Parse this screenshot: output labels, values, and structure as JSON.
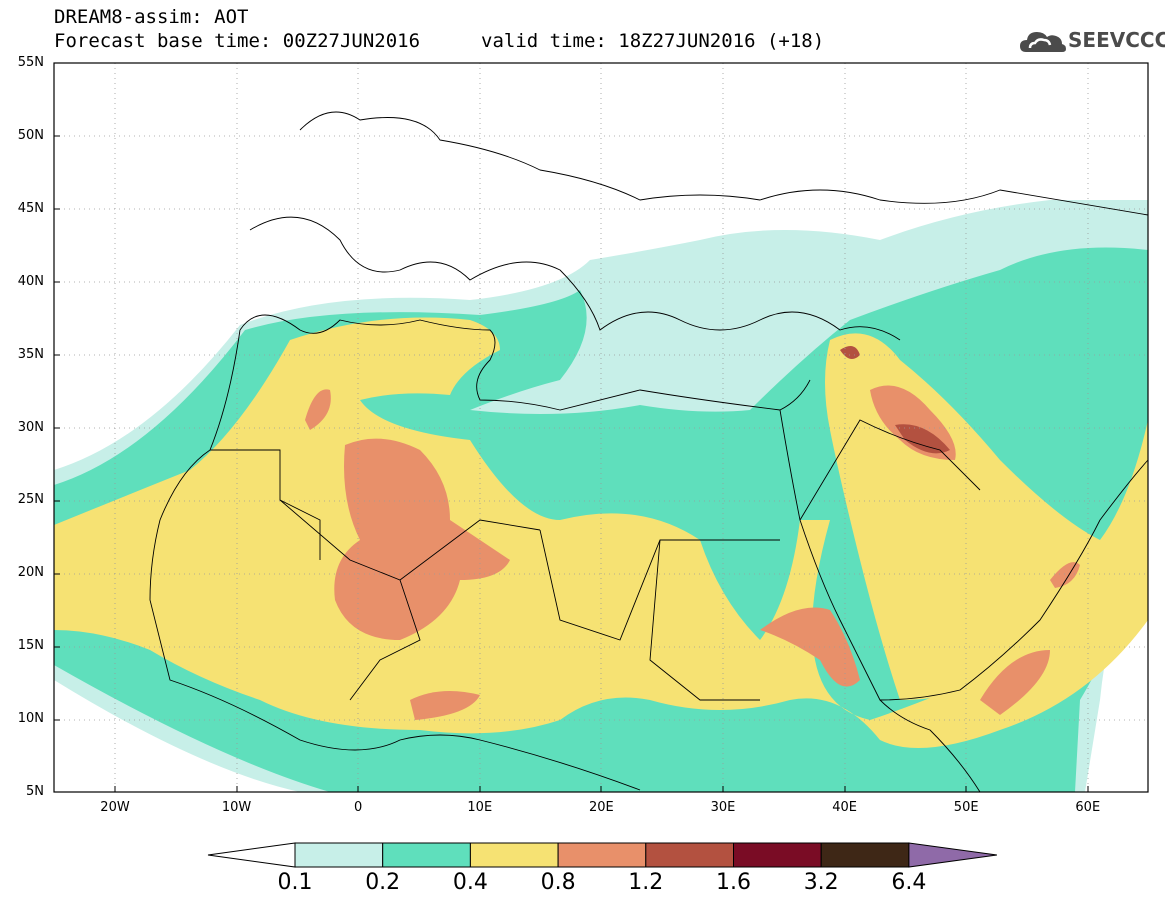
{
  "title": {
    "line1": "DREAM8-assim: AOT",
    "line2": "Forecast base time: 00Z27JUN2016",
    "valid": "valid time: 18Z27JUN2016 (+18)"
  },
  "logo": {
    "text": "SEEVCCC",
    "icon": "cloud-icon"
  },
  "map": {
    "lat_ticks": [
      "55N",
      "50N",
      "45N",
      "40N",
      "35N",
      "30N",
      "25N",
      "20N",
      "15N",
      "10N",
      "5N"
    ],
    "lon_ticks": [
      "20W",
      "10W",
      "0",
      "10E",
      "20E",
      "30E",
      "40E",
      "50E",
      "60E"
    ]
  },
  "colorbar": {
    "labels": [
      "0.1",
      "0.2",
      "0.4",
      "0.8",
      "1.2",
      "1.6",
      "3.2",
      "6.4"
    ],
    "colors": [
      "#c7efe8",
      "#5fdfbc",
      "#f6e273",
      "#e8906a",
      "#b35140",
      "#7a0c25",
      "#3e2716",
      "#8f6aa8"
    ]
  }
}
